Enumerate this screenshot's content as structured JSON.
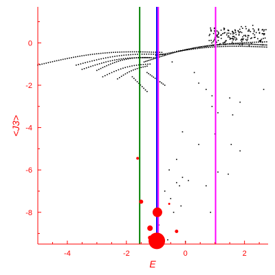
{
  "chart_data": {
    "type": "scatter",
    "xlabel": "E",
    "ylabel": "<J3>",
    "xlim": [
      -5,
      2.8
    ],
    "ylim": [
      -9.5,
      1.7
    ],
    "x_ticks": [
      -4,
      -2,
      0,
      2
    ],
    "x_tick_labels": [
      "-4",
      "-2",
      "0",
      "2"
    ],
    "y_ticks": [
      0,
      -2,
      -4,
      -6,
      -8
    ],
    "y_tick_labels": [
      "0",
      "-2",
      "-4",
      "-6",
      "-8"
    ],
    "grid": false,
    "axis_color": "#ff0000",
    "vertical_lines": [
      {
        "x": -1.55,
        "color": "#008000"
      },
      {
        "x": -0.97,
        "color": "#0000ff"
      },
      {
        "x": -0.92,
        "color": "#ff00ff"
      },
      {
        "x": 1.02,
        "color": "#ff00ff"
      }
    ],
    "band_point_color": "#000000",
    "band_curves": [
      {
        "x0": -5.0,
        "x1": -0.8,
        "y0": -1.05,
        "y1": -0.45,
        "curvature": 0.25,
        "n": 60
      },
      {
        "x0": -3.7,
        "x1": -0.7,
        "y0": -1.05,
        "y1": -0.55,
        "curvature": 0.2,
        "n": 40
      },
      {
        "x0": -3.5,
        "x1": -1.0,
        "y0": -1.25,
        "y1": -0.7,
        "curvature": 0.2,
        "n": 35
      },
      {
        "x0": -3.0,
        "x1": -1.2,
        "y0": -1.3,
        "y1": -0.7,
        "curvature": 0.2,
        "n": 28
      },
      {
        "x0": -2.8,
        "x1": -1.2,
        "y0": -1.6,
        "y1": -1.0,
        "curvature": 0.15,
        "n": 22
      },
      {
        "x0": -2.3,
        "x1": -1.3,
        "y0": -1.7,
        "y1": -1.1,
        "curvature": 0.1,
        "n": 16
      },
      {
        "x0": -1.4,
        "x1": 2.75,
        "y0": -0.9,
        "y1": -0.1,
        "curvature": 0.35,
        "n": 80
      },
      {
        "x0": -1.0,
        "x1": 2.75,
        "y0": -0.6,
        "y1": -0.2,
        "curvature": 0.2,
        "n": 60
      },
      {
        "x0": -0.3,
        "x1": 2.75,
        "y0": -0.4,
        "y1": 0.05,
        "curvature": 0.1,
        "n": 45
      },
      {
        "x0": -1.3,
        "x1": -0.7,
        "y0": -1.4,
        "y1": -2.0,
        "curvature": 0.0,
        "n": 12
      },
      {
        "x0": -1.8,
        "x1": -1.3,
        "y0": -1.6,
        "y1": -2.3,
        "curvature": 0.0,
        "n": 10
      }
    ],
    "cloud": {
      "x0": 0.8,
      "x1": 2.75,
      "y_center": 0.35,
      "y_spread": 0.55,
      "n": 160
    },
    "scattered_points": [
      [
        -0.45,
        -0.9
      ],
      [
        0.3,
        -1.4
      ],
      [
        0.45,
        -1.9
      ],
      [
        0.7,
        -2.2
      ],
      [
        0.9,
        -2.5
      ],
      [
        1.5,
        -2.6
      ],
      [
        1.85,
        -2.8
      ],
      [
        0.9,
        -3.0
      ],
      [
        1.1,
        -3.3
      ],
      [
        1.6,
        -3.4
      ],
      [
        2.65,
        -2.2
      ],
      [
        -0.1,
        -4.2
      ],
      [
        1.0,
        -4.3
      ],
      [
        0.45,
        -4.8
      ],
      [
        1.55,
        -4.8
      ],
      [
        1.85,
        -5.1
      ],
      [
        -0.3,
        -5.5
      ],
      [
        -0.55,
        -6.0
      ],
      [
        1.1,
        -6.1
      ],
      [
        1.45,
        -6.2
      ],
      [
        -0.1,
        -6.35
      ],
      [
        0.1,
        -6.5
      ],
      [
        -0.3,
        -6.6
      ],
      [
        0.7,
        -6.75
      ],
      [
        -0.2,
        -6.75
      ],
      [
        -0.7,
        -7.0
      ],
      [
        -0.5,
        -7.35
      ],
      [
        -0.15,
        -7.7
      ],
      [
        -0.4,
        -8.0
      ],
      [
        0.85,
        -8.0
      ],
      [
        -0.9,
        -8.6
      ],
      [
        -0.95,
        -9.0
      ],
      [
        -0.6,
        -9.3
      ],
      [
        0.0,
        -9.4
      ]
    ],
    "red_markers": [
      {
        "x": -1.62,
        "y": -5.45,
        "size": 2
      },
      {
        "x": -1.5,
        "y": -7.5,
        "size": 3
      },
      {
        "x": -0.55,
        "y": -7.6,
        "size": 1.5
      },
      {
        "x": -0.95,
        "y": -8.0,
        "size": 7
      },
      {
        "x": -1.2,
        "y": -8.75,
        "size": 4
      },
      {
        "x": -0.3,
        "y": -8.9,
        "size": 2.5
      },
      {
        "x": -1.2,
        "y": -9.2,
        "size": 3
      },
      {
        "x": -0.97,
        "y": -9.35,
        "size": 12
      }
    ],
    "red_marker_color": "#ff0000"
  }
}
